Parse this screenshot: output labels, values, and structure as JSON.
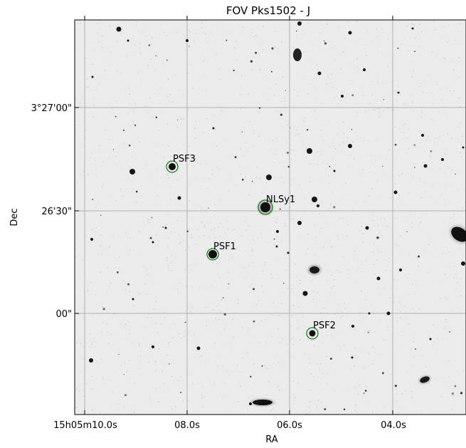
{
  "figure": {
    "title": "FOV Pks1502 - J",
    "xlabel": "RA",
    "ylabel": "Dec",
    "colors": {
      "background": "#ebebeb",
      "grid": "#b0b0b0",
      "marker": "#1e7a1e",
      "axes": "#000000"
    }
  },
  "chart_data": {
    "type": "image",
    "title": "FOV Pks1502 - J",
    "xlabel": "RA",
    "ylabel": "Dec",
    "x_ticks": [
      "15h05m10.0s",
      "08.0s",
      "06.0s",
      "04.0s"
    ],
    "y_ticks": [
      "3°27'00\"",
      "26'30\"",
      "00\""
    ],
    "grid": true,
    "sources": [
      {
        "label": "PSF3",
        "ra": "15h05m08.3s",
        "dec": "3°26'45\""
      },
      {
        "label": "NLSy1",
        "ra": "15h05m06.5s",
        "dec": "3°26'29\""
      },
      {
        "label": "PSF1",
        "ra": "15h05m07.5s",
        "dec": "3°26'16\""
      },
      {
        "label": "PSF2",
        "ra": "15h05m05.6s",
        "dec": "3°25'54\""
      }
    ]
  }
}
